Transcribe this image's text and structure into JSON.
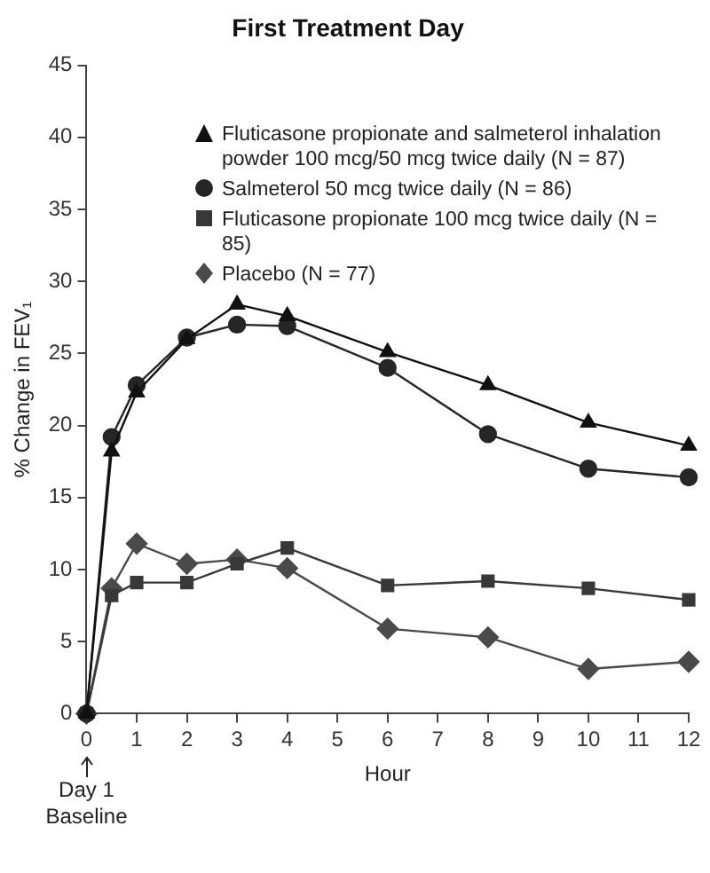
{
  "chart_data": {
    "type": "line",
    "title": "First Treatment Day",
    "xlabel": "Hour",
    "ylabel": "% Change in FEV₁",
    "x": [
      0,
      0.5,
      1,
      2,
      3,
      4,
      6,
      8,
      10,
      12
    ],
    "xlim": [
      0,
      12
    ],
    "xticks": [
      0,
      1,
      2,
      3,
      4,
      5,
      6,
      7,
      8,
      9,
      10,
      11,
      12
    ],
    "ylim": [
      0,
      45
    ],
    "yticks": [
      0,
      5,
      10,
      15,
      20,
      25,
      30,
      35,
      40,
      45
    ],
    "grid": false,
    "legend": "top right",
    "line_style": "solid",
    "annotations": [
      "Day 1 Baseline"
    ],
    "series": [
      {
        "name": "Fluticasone propionate and salmeterol inhalation powder 100 mcg/50 mcg twice daily (N = 87)",
        "color": "#111111",
        "marker": "triangle",
        "values": [
          0,
          18.2,
          22.3,
          26,
          28.4,
          27.6,
          25.1,
          22.8,
          20.2,
          18.6
        ]
      },
      {
        "name": "Salmeterol 50 mcg twice daily (N = 86)",
        "color": "#262626",
        "marker": "circle",
        "values": [
          0,
          19.2,
          22.8,
          26.1,
          27,
          26.9,
          24,
          19.4,
          17,
          16.4
        ]
      },
      {
        "name": "Fluticasone propionate 100 mcg twice daily (N = 85)",
        "color": "#383838",
        "marker": "square",
        "values": [
          0,
          8.2,
          9.1,
          9.1,
          10.4,
          11.5,
          8.9,
          9.2,
          8.7,
          7.9
        ]
      },
      {
        "name": "Placebo (N = 77)",
        "color": "#4a4a4a",
        "marker": "diamond",
        "values": [
          0,
          8.7,
          11.8,
          10.4,
          10.7,
          10.1,
          5.9,
          5.3,
          3.1,
          3.6
        ]
      }
    ]
  }
}
